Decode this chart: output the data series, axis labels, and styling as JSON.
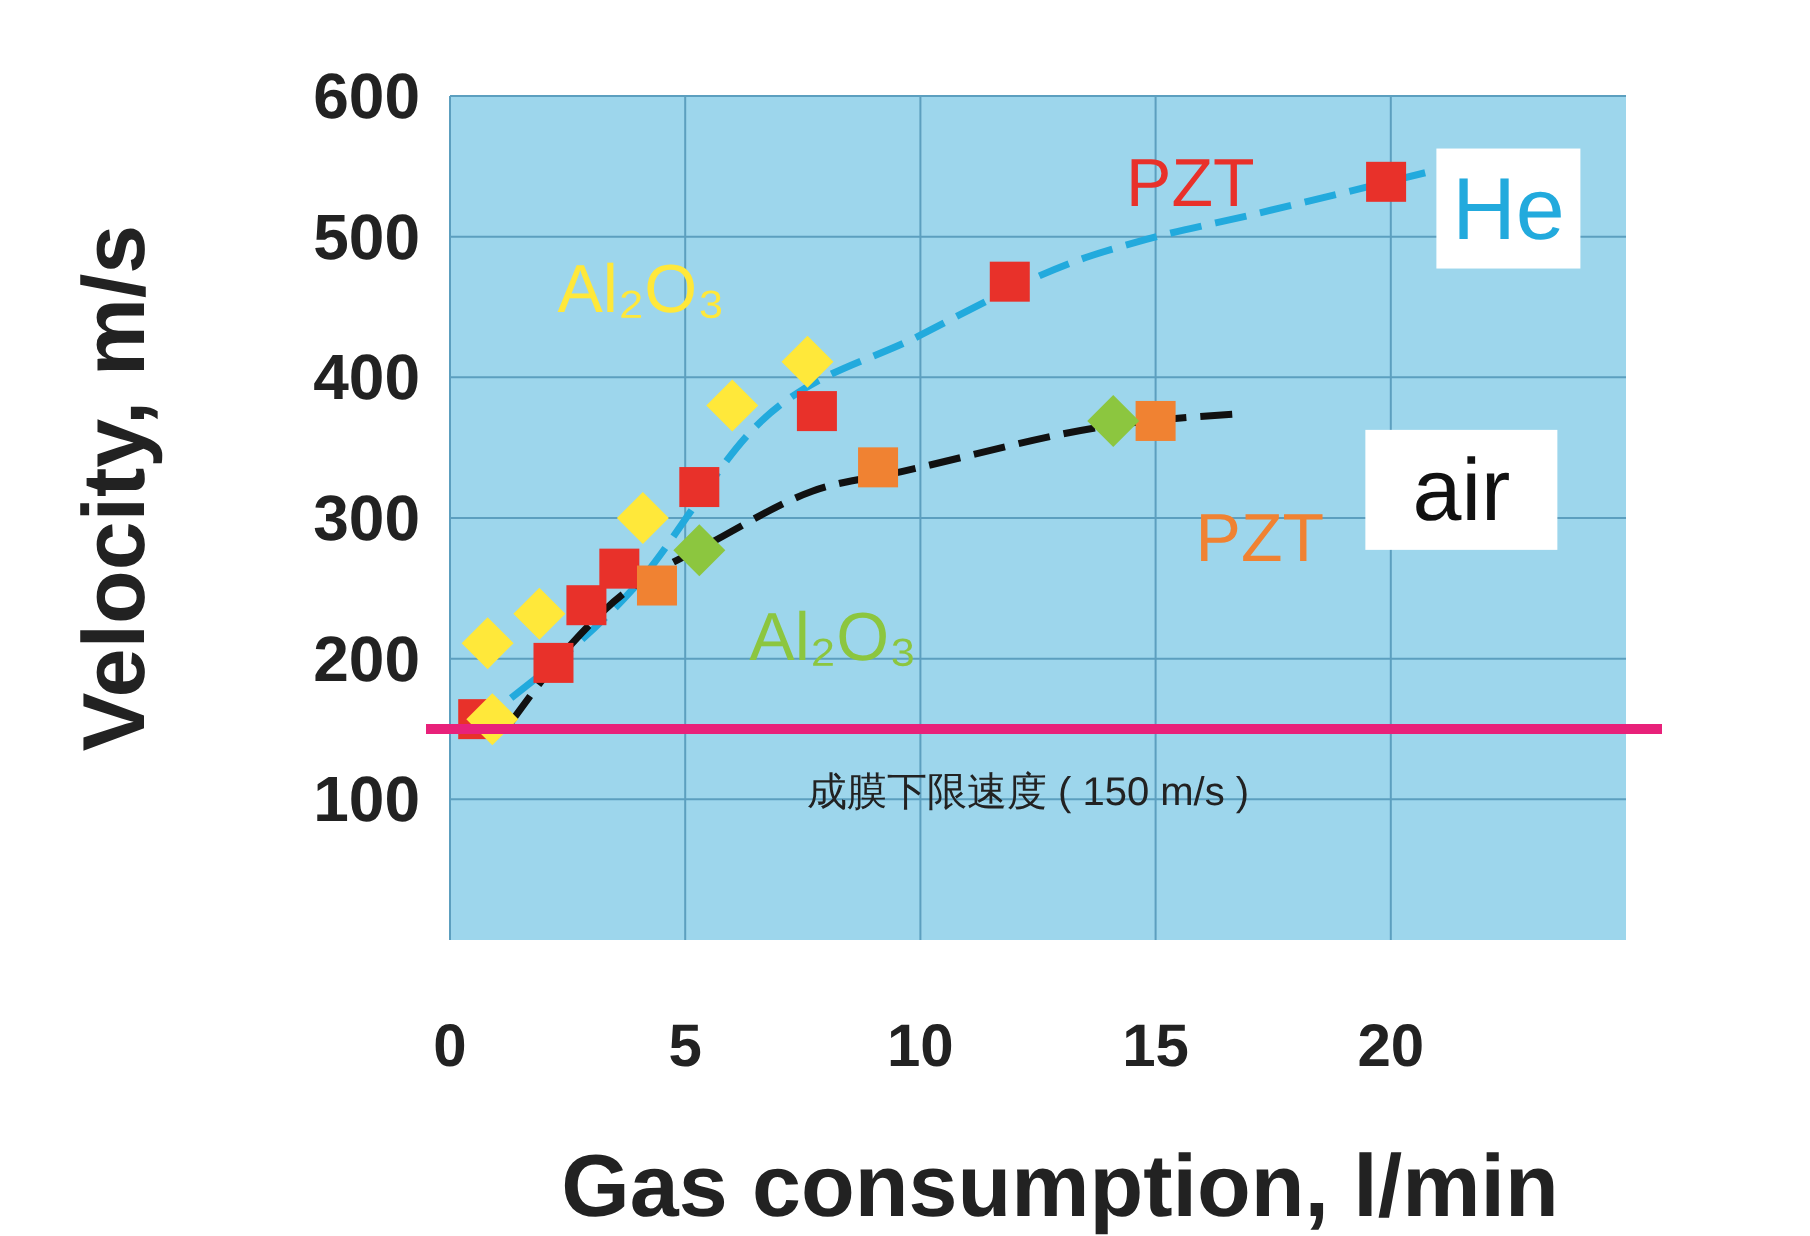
{
  "chart_data": {
    "type": "scatter",
    "xlabel": "Gas consumption, l/min",
    "ylabel": "Velocity, m/s",
    "xlim": [
      0,
      25
    ],
    "xticks": [
      0,
      5,
      10,
      15,
      20
    ],
    "ylim": [
      0,
      600
    ],
    "yticks": [
      100,
      200,
      300,
      400,
      500,
      600
    ],
    "grid": true,
    "series": [
      {
        "type": "line",
        "color": "#22aadd",
        "line_style": "dashed",
        "marker": "none",
        "x": [
          1.3,
          3.9,
          6.5,
          10.0,
          13.5,
          14.8,
          17.1,
          20.8
        ],
        "values": [
          172,
          250,
          365,
          430,
          485,
          498,
          516,
          546
        ]
      },
      {
        "type": "line",
        "color": "#111111",
        "line_style": "dashed",
        "marker": "none",
        "x": [
          1.3,
          2.6,
          3.3,
          5.8,
          7.7,
          9.6,
          14.1,
          16.7
        ],
        "values": [
          155,
          211,
          235,
          287,
          319,
          333,
          366,
          374
        ]
      },
      {
        "name": "PZT",
        "color": "#e8312a",
        "marker": "square",
        "x": [
          0.6,
          2.2,
          2.9,
          3.6,
          5.3,
          7.8,
          11.9,
          19.9
        ],
        "values": [
          157,
          197,
          238,
          264,
          322,
          376,
          468,
          539
        ]
      },
      {
        "name": "Al₂O₃",
        "color": "#ffe83a",
        "marker": "diamond",
        "x": [
          0.9,
          0.8,
          1.9,
          4.1,
          6.0,
          7.6
        ],
        "values": [
          157,
          211,
          232,
          300,
          380,
          411
        ]
      },
      {
        "name": "PZT",
        "color": "#f08232",
        "marker": "square",
        "x": [
          4.4,
          9.1,
          15.0
        ],
        "values": [
          252,
          336,
          369
        ]
      },
      {
        "name": "Al₂O₃",
        "color": "#8cc63f",
        "marker": "diamond",
        "x": [
          5.3,
          14.1
        ],
        "values": [
          277,
          369
        ]
      }
    ],
    "annotations": [
      "He",
      "air"
    ],
    "ref_lines": [
      {
        "axis": "y",
        "value": 150,
        "label": "成膜下限速度 ( 150 m/s )",
        "color": "#e8217a"
      }
    ]
  }
}
